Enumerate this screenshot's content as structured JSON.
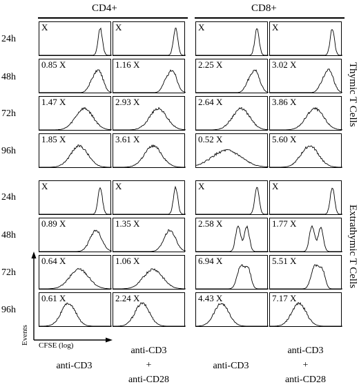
{
  "column_groups": [
    {
      "label": "CD4+"
    },
    {
      "label": "CD8+"
    }
  ],
  "time_labels": [
    "24h",
    "48h",
    "72h",
    "96h"
  ],
  "sections": [
    {
      "label": "Thymic T Cells"
    },
    {
      "label": "Extrathymic T Cells"
    }
  ],
  "conditions": [
    {
      "line1": "anti-CD3",
      "line2": "",
      "line3": ""
    },
    {
      "line1": "anti-CD3",
      "line2": "+",
      "line3": "anti-CD28"
    },
    {
      "line1": "anti-CD3",
      "line2": "",
      "line3": ""
    },
    {
      "line1": "anti-CD3",
      "line2": "+",
      "line3": "anti-CD28"
    }
  ],
  "axis": {
    "y_label": "Events",
    "x_label": "CFSE (log)"
  },
  "panels": [
    [
      [
        "X",
        "X",
        "X",
        "X"
      ],
      [
        "0.85 X",
        "1.16 X",
        "2.25 X",
        "3.02 X"
      ],
      [
        "1.47 X",
        "2.93 X",
        "2.64 X",
        "3.86 X"
      ],
      [
        "1.85 X",
        "3.61 X",
        "0.52 X",
        "5.60 X"
      ]
    ],
    [
      [
        "X",
        "X",
        "X",
        "X"
      ],
      [
        "0.89 X",
        "1.35 X",
        "2.58 X",
        "1.77 X"
      ],
      [
        "0.64 X",
        "1.06 X",
        "6.94 X",
        "5.51 X"
      ],
      [
        "0.61 X",
        "2.24 X",
        "4.43 X",
        "7.17 X"
      ]
    ]
  ]
}
